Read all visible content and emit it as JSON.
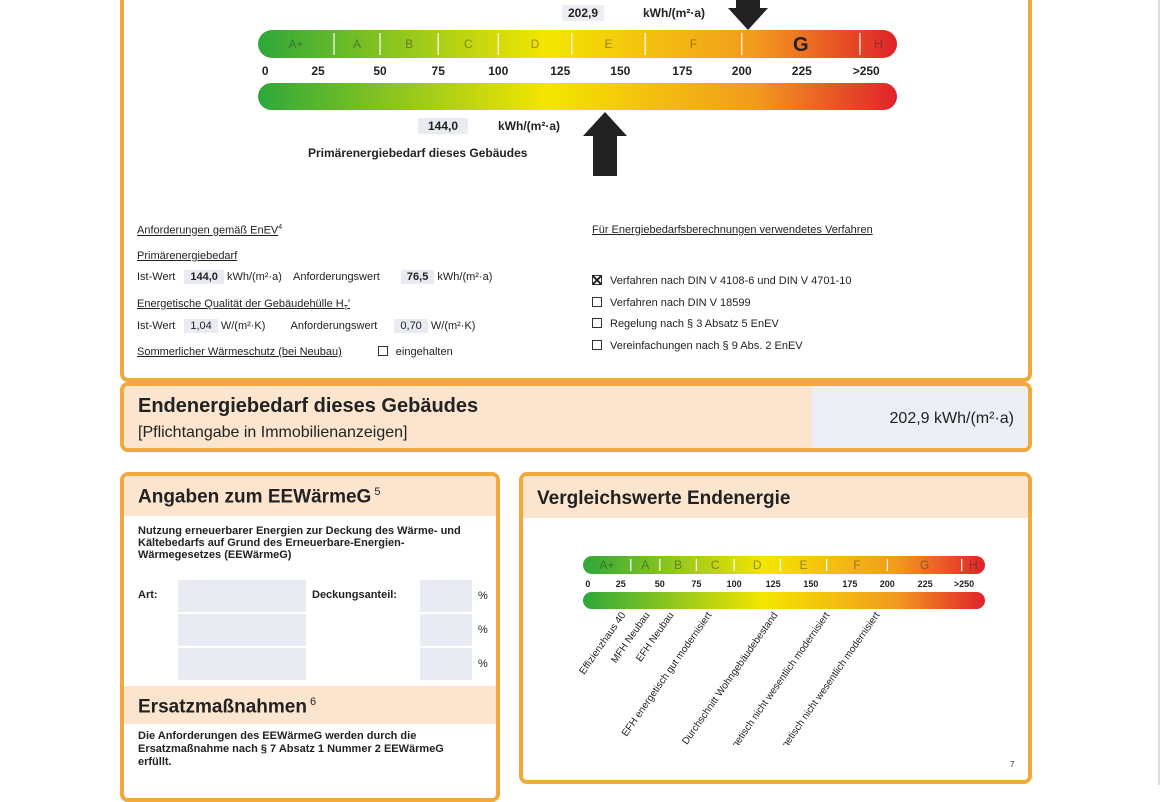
{
  "primary_scale": {
    "top_value": "202,9",
    "top_unit": "kWh/(m²·a)",
    "classes": [
      "A+",
      "A",
      "B",
      "C",
      "D",
      "E",
      "F",
      "G",
      "H"
    ],
    "ticks": [
      "0",
      "25",
      "50",
      "75",
      "100",
      "125",
      "150",
      "175",
      "200",
      "225",
      ">250"
    ],
    "bottom_value": "144,0",
    "bottom_unit": "kWh/(m²·a)",
    "bottom_caption": "Primärenergiebedarf dieses Gebäudes"
  },
  "requirements": {
    "title": "Anforderungen gemäß EnEV",
    "footnote": "4",
    "primary": {
      "label": "Primärenergiebedarf",
      "actual_label": "Ist-Wert",
      "actual_value": "144,0",
      "actual_unit": "kWh/(m²·a)",
      "required_label": "Anforderungswert",
      "required_value": "76,5",
      "required_unit": "kWh/(m²·a)"
    },
    "envelope": {
      "label": "Energetische Qualität der Gebäudehülle H",
      "label_sub": "T",
      "label_suffix": "'",
      "actual_label": "Ist-Wert",
      "actual_value": "1,04",
      "actual_unit": "W/(m²·K)",
      "required_label": "Anforderungswert",
      "required_value": "0,70",
      "required_unit": "W/(m²·K)"
    },
    "summer": {
      "label": "Sommerlicher Wärmeschutz (bei Neubau)",
      "option": "eingehalten",
      "checked": false
    }
  },
  "procedure": {
    "title": "Für Energiebedarfsberechnungen verwendetes Verfahren",
    "options": [
      {
        "label": "Verfahren nach DIN V 4108-6 und DIN V 4701-10",
        "checked": true
      },
      {
        "label": "Verfahren nach DIN V 18599",
        "checked": false
      },
      {
        "label": "Regelung nach § 3 Absatz 5 EnEV",
        "checked": false
      },
      {
        "label": "Vereinfachungen nach § 9 Abs. 2 EnEV",
        "checked": false
      }
    ]
  },
  "final_energy": {
    "title": "Endenergiebedarf dieses Gebäudes",
    "subtitle": "[Pflichtangabe in Immobilienanzeigen]",
    "value": "202,9 kWh/(m²·a)"
  },
  "eewaermeg": {
    "title": "Angaben zum EEWärmeG",
    "footnote": "5",
    "text": "Nutzung erneuerbarer Energien zur Deckung des Wärme- und Kältebedarfs auf Grund des Erneuerbare-Energien-Wärmegesetzes (EEWärmeG)",
    "type_label": "Art:",
    "share_label": "Deckungsanteil:",
    "percent": [
      "%",
      "%",
      "%"
    ],
    "substitute_title": "Ersatzmaßnahmen",
    "substitute_footnote": "6",
    "substitute_text": "Die Anforderungen des EEWärmeG werden durch die Ersatzmaßnahme nach § 7 Absatz 1 Nummer 2 EEWärmeG erfüllt."
  },
  "comparison": {
    "title": "Vergleichswerte Endenergie",
    "classes": [
      "A+",
      "A",
      "B",
      "C",
      "D",
      "E",
      "F",
      "G",
      "H"
    ],
    "ticks": [
      "0",
      "25",
      "50",
      "75",
      "100",
      "125",
      "150",
      "175",
      "200",
      "225",
      ">250"
    ],
    "labels": [
      "Effizienzhaus 40",
      "MFH Neubau",
      "EFH Neubau",
      "EFH energetisch gut modernisiert",
      "Durchschnitt Wohngebäudebestand",
      "MFH energetisch nicht wesentlich modernisiert",
      "EFH energetisch nicht wesentlich modernisiert"
    ],
    "page_number": "7"
  }
}
